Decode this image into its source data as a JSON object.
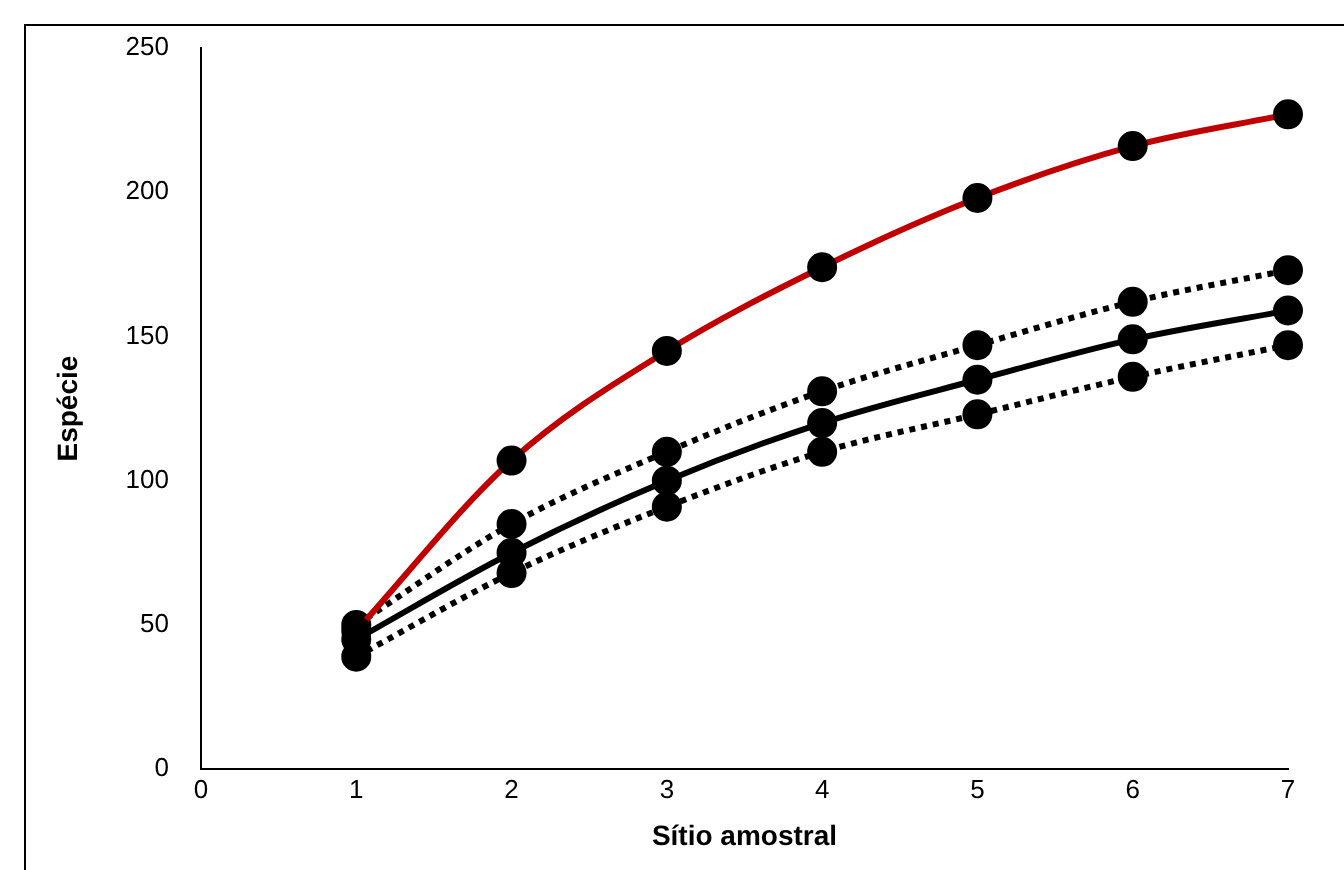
{
  "chart_data": {
    "type": "line",
    "xlabel": "Sítio amostral",
    "ylabel": "Espécie",
    "xlim": [
      0,
      7
    ],
    "xticks": [
      0,
      1,
      2,
      3,
      4,
      5,
      6,
      7
    ],
    "ylim": [
      0,
      250
    ],
    "yticks": [
      0,
      50,
      100,
      150,
      200,
      250
    ],
    "x": [
      1,
      2,
      3,
      4,
      5,
      6,
      7
    ],
    "grid": false,
    "legend": false,
    "marker": "circle",
    "series": [
      {
        "color": "#c00000",
        "line_style": "solid",
        "values": [
          48,
          107,
          145,
          174,
          198,
          216,
          227
        ]
      },
      {
        "color": "#000000",
        "line_style": "dotted",
        "values": [
          50,
          85,
          110,
          131,
          147,
          162,
          173
        ]
      },
      {
        "color": "#000000",
        "line_style": "solid",
        "values": [
          45,
          75,
          100,
          120,
          135,
          149,
          159
        ]
      },
      {
        "color": "#000000",
        "line_style": "dotted",
        "values": [
          39,
          68,
          91,
          110,
          123,
          136,
          147
        ]
      }
    ]
  }
}
